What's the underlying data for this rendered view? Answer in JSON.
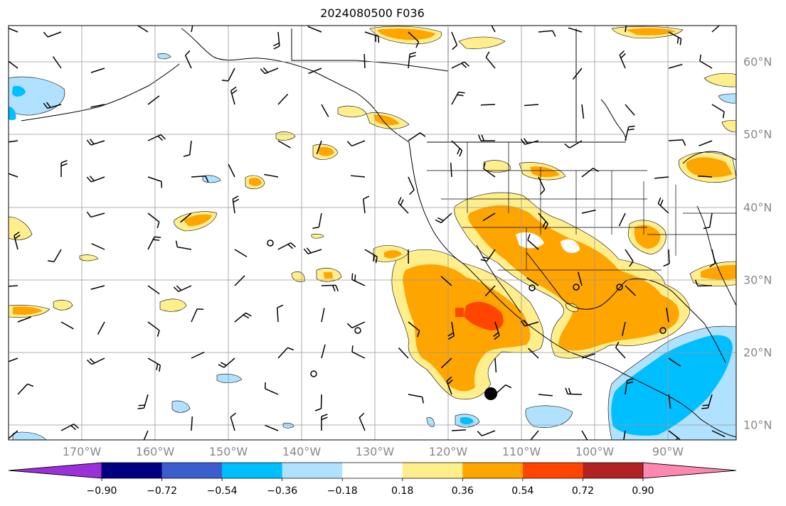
{
  "title": "2024080500 F036",
  "map": {
    "lon_labels": [
      "170°W",
      "160°W",
      "150°W",
      "140°W",
      "130°W",
      "120°W",
      "110°W",
      "100°W",
      "90°W"
    ],
    "lat_labels": [
      "60°N",
      "50°N",
      "40°N",
      "30°N",
      "20°N",
      "10°N"
    ],
    "gridlines": true
  },
  "colorbar": {
    "tick_labels": [
      "−0.90",
      "−0.72",
      "−0.54",
      "−0.36",
      "−0.18",
      "0.18",
      "0.36",
      "0.54",
      "0.72",
      "0.90"
    ],
    "colors": {
      "lt_m090": "#9b30d9",
      "m090_m072": "#000080",
      "m072_m054": "#3a5fcd",
      "m054_m036": "#00bfff",
      "m036_m018": "#b0e2ff",
      "m018_018": "#ffffff",
      "018_036": "#ffee8c",
      "036_054": "#ffa500",
      "054_072": "#ff4500",
      "072_090": "#b22222",
      "gt_090": "#ff88b0"
    },
    "extend": "both",
    "orientation": "horizontal"
  }
}
